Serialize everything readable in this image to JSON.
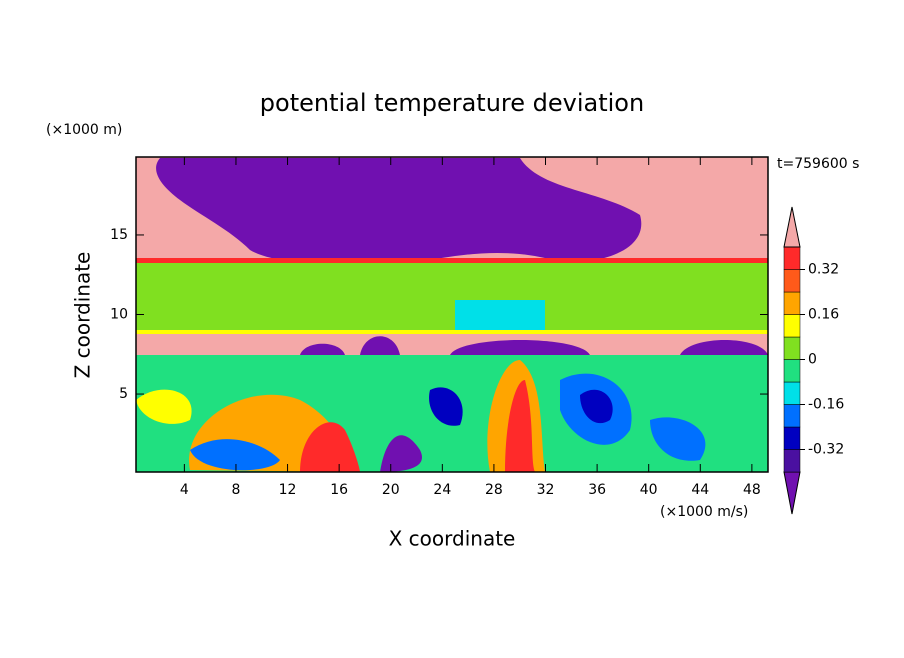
{
  "chart_data": {
    "type": "contour",
    "title": "potential temperature deviation",
    "x_label": "X coordinate",
    "y_label": "Z coordinate",
    "x_unit": "(×1000 m/s)",
    "y_unit": "(×1000 m)",
    "time_label": "t=759600 s",
    "xlim": [
      0.25,
      49.25
    ],
    "ylim": [
      0.1,
      19.9
    ],
    "xticks": [
      4,
      8,
      12,
      16,
      20,
      24,
      28,
      32,
      36,
      40,
      44,
      48
    ],
    "yticks": [
      5,
      10,
      15
    ],
    "colorbar": {
      "levels": [
        -0.4,
        -0.32,
        -0.24,
        -0.16,
        -0.08,
        0,
        0.08,
        0.16,
        0.24,
        0.32,
        0.4
      ],
      "colors": [
        "#7010b0",
        "#4a10a0",
        "#0000c0",
        "#0070ff",
        "#00e0e8",
        "#20e080",
        "#80e020",
        "#ffff00",
        "#ffa500",
        "#ff5a1a",
        "#ff2a2a",
        "#f4a8a8"
      ],
      "ticks": [
        -0.32,
        -0.16,
        0,
        0.16,
        0.32
      ]
    }
  }
}
